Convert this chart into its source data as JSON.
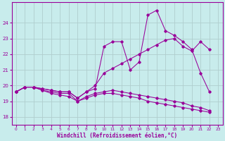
{
  "xlabel": "Windchill (Refroidissement éolien,°C)",
  "bg_color": "#c8ecec",
  "line_color": "#990099",
  "grid_color": "#b0cece",
  "x_ticks": [
    0,
    1,
    2,
    3,
    4,
    5,
    6,
    7,
    8,
    9,
    10,
    11,
    12,
    13,
    14,
    15,
    16,
    17,
    18,
    19,
    20,
    21,
    22,
    23
  ],
  "y_ticks": [
    18,
    19,
    20,
    21,
    22,
    23,
    24
  ],
  "ylim": [
    17.5,
    25.3
  ],
  "xlim": [
    -0.5,
    23.5
  ],
  "series1_x": [
    0,
    1,
    2,
    3,
    4,
    5,
    6,
    7,
    8,
    9,
    10,
    11,
    12,
    13,
    14,
    15,
    16,
    17,
    18,
    19,
    20,
    21,
    22
  ],
  "series1_y": [
    19.6,
    19.9,
    19.9,
    19.8,
    19.7,
    19.6,
    19.6,
    19.2,
    19.6,
    19.8,
    22.5,
    22.8,
    22.8,
    21.0,
    21.5,
    24.5,
    24.8,
    23.5,
    23.2,
    22.8,
    22.3,
    20.8,
    19.6
  ],
  "series2_x": [
    0,
    1,
    2,
    3,
    4,
    5,
    6,
    7,
    8,
    9,
    10,
    11,
    12,
    13,
    14,
    15,
    16,
    17,
    18,
    19,
    20,
    21,
    22
  ],
  "series2_y": [
    19.6,
    19.9,
    19.9,
    19.8,
    19.7,
    19.6,
    19.6,
    19.2,
    19.6,
    20.0,
    20.8,
    21.1,
    21.4,
    21.7,
    22.0,
    22.3,
    22.6,
    22.9,
    23.0,
    22.5,
    22.2,
    22.8,
    22.3
  ],
  "series3_x": [
    0,
    1,
    2,
    3,
    4,
    5,
    6,
    7,
    8,
    9,
    10,
    11,
    12,
    13,
    14,
    15,
    16,
    17,
    18,
    19,
    20,
    21,
    22
  ],
  "series3_y": [
    19.6,
    19.9,
    19.9,
    19.7,
    19.6,
    19.5,
    19.5,
    19.0,
    19.3,
    19.5,
    19.6,
    19.7,
    19.6,
    19.5,
    19.4,
    19.3,
    19.2,
    19.1,
    19.0,
    18.9,
    18.7,
    18.6,
    18.4
  ],
  "series4_x": [
    0,
    1,
    2,
    3,
    4,
    5,
    6,
    7,
    8,
    9,
    10,
    11,
    12,
    13,
    14,
    15,
    16,
    17,
    18,
    19,
    20,
    21,
    22
  ],
  "series4_y": [
    19.6,
    19.9,
    19.9,
    19.7,
    19.5,
    19.4,
    19.3,
    19.0,
    19.2,
    19.4,
    19.5,
    19.5,
    19.4,
    19.3,
    19.2,
    19.0,
    18.9,
    18.8,
    18.7,
    18.6,
    18.5,
    18.4,
    18.3
  ]
}
